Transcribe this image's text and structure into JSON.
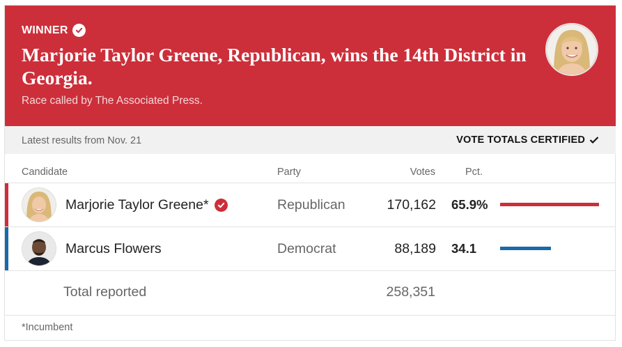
{
  "banner": {
    "winner_label": "WINNER",
    "headline": "Marjorie Taylor Greene, Republican, wins the 14th District in Georgia.",
    "called_by": "Race called by The Associated Press.",
    "background_color": "#cc2f3a"
  },
  "status": {
    "latest": "Latest results from Nov. 21",
    "certified": "VOTE TOTALS CERTIFIED"
  },
  "columns": {
    "candidate": "Candidate",
    "party": "Party",
    "votes": "Votes",
    "pct": "Pct."
  },
  "candidates": [
    {
      "name": "Marjorie Taylor Greene*",
      "party": "Republican",
      "votes": "170,162",
      "pct": "65.9%",
      "share": 0.659,
      "color": "#cc2f3a",
      "winner": true
    },
    {
      "name": "Marcus Flowers",
      "party": "Democrat",
      "votes": "88,189",
      "pct": "34.1",
      "share": 0.341,
      "color": "#1a6aa8",
      "winner": false
    }
  ],
  "total": {
    "label": "Total reported",
    "votes": "258,351"
  },
  "footnote": "*Incumbent"
}
